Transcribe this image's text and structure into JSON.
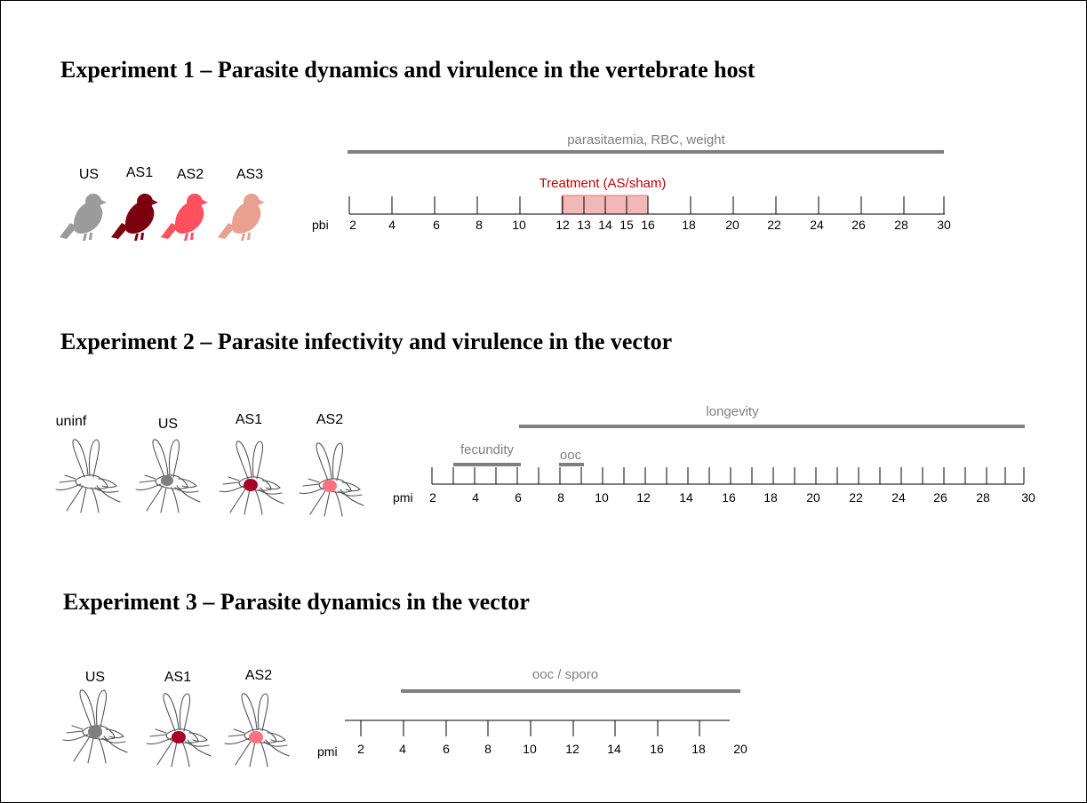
{
  "colors": {
    "grey": "#9b9b9b",
    "bar": "#7f7f7f",
    "dark_red": "#7a0010",
    "red": "#ff5060",
    "pink": "#e8a090",
    "treatment_fill": "#f2b8b8",
    "treatment_text": "#c00000",
    "mosq_grey": "#7f7f7f",
    "mosq_dark": "#a8002a",
    "mosq_pink": "#ff7080"
  },
  "experiments": [
    {
      "title": "Experiment 1 – Parasite dynamics and virulence in the vertebrate host",
      "host_icon": "bird-icon",
      "groups": [
        {
          "label": "US",
          "color": "grey"
        },
        {
          "label": "AS1",
          "color": "dark_red"
        },
        {
          "label": "AS2",
          "color": "red"
        },
        {
          "label": "AS3",
          "color": "pink"
        }
      ],
      "axis": {
        "label": "pbi",
        "ticks": [
          2,
          4,
          6,
          8,
          10,
          12,
          13,
          14,
          15,
          16,
          18,
          20,
          22,
          24,
          26,
          28,
          30
        ],
        "tick_labels": [
          "2",
          "4",
          "6",
          "8",
          "10",
          "12",
          "13",
          "14",
          "15",
          "16",
          "18",
          "20",
          "22",
          "24",
          "26",
          "28",
          "30"
        ]
      },
      "bars": [
        {
          "label": "parasitaemia, RBC, weight",
          "from": 2,
          "to": 30
        }
      ],
      "treatment": {
        "label": "Treatment (AS/sham)",
        "from": 12,
        "to": 16
      }
    },
    {
      "title": "Experiment 2   – Parasite infectivity and virulence in the vector",
      "host_icon": "mosquito-icon",
      "groups": [
        {
          "label": "uninf",
          "color": "none"
        },
        {
          "label": "US",
          "color": "mosq_grey"
        },
        {
          "label": "AS1",
          "color": "mosq_dark"
        },
        {
          "label": "AS2",
          "color": "mosq_pink"
        }
      ],
      "axis": {
        "label": "pmi",
        "ticks": [
          2,
          3,
          4,
          5,
          6,
          7,
          8,
          9,
          10,
          11,
          12,
          13,
          14,
          15,
          16,
          17,
          18,
          19,
          20,
          21,
          22,
          23,
          24,
          25,
          26,
          27,
          28,
          29,
          30
        ],
        "tick_labels": [
          "2",
          "4",
          "6",
          "8",
          "10",
          "12",
          "14",
          "16",
          "18",
          "20",
          "22",
          "24",
          "26",
          "28",
          "30"
        ]
      },
      "bars": [
        {
          "label": "longevity",
          "from": 6,
          "to": 30
        },
        {
          "label": "fecundity",
          "from": 3,
          "to": 6
        },
        {
          "label": "ooc",
          "from": 8,
          "to": 9
        }
      ]
    },
    {
      "title": "Experiment 3   – Parasite dynamics in the vector",
      "host_icon": "mosquito-icon",
      "groups": [
        {
          "label": "US",
          "color": "mosq_grey"
        },
        {
          "label": "AS1",
          "color": "mosq_dark"
        },
        {
          "label": "AS2",
          "color": "mosq_pink"
        }
      ],
      "axis": {
        "label": "pmi",
        "ticks": [
          1,
          2,
          4,
          6,
          8,
          10,
          12,
          14,
          16,
          18,
          20
        ],
        "tick_labels": [
          "2",
          "4",
          "6",
          "8",
          "10",
          "12",
          "14",
          "16",
          "18",
          "20"
        ]
      },
      "bars": [
        {
          "label": "ooc / sporo",
          "from": 4,
          "to": 20
        }
      ]
    }
  ]
}
